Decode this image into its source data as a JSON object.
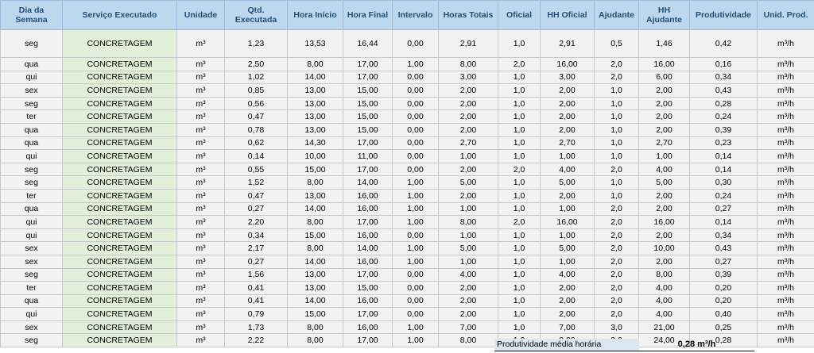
{
  "headers": [
    "Dia da Semana",
    "Serviço Executado",
    "Unidade",
    "Qtd. Executada",
    "Hora Início",
    "Hora Final",
    "Intervalo",
    "Horas Totais",
    "Oficial",
    "HH Oficial",
    "Ajudante",
    "HH Ajudante",
    "Produtividade",
    "Unid. Prod."
  ],
  "rows": [
    [
      "seg",
      "CONCRETAGEM",
      "m³",
      "1,23",
      "13,53",
      "16,44",
      "0,00",
      "2,91",
      "1,0",
      "2,91",
      "0,5",
      "1,46",
      "0,42",
      "m³/h"
    ],
    [
      "qua",
      "CONCRETAGEM",
      "m³",
      "2,50",
      "8,00",
      "17,00",
      "1,00",
      "8,00",
      "2,0",
      "16,00",
      "2,0",
      "16,00",
      "0,16",
      "m³/h"
    ],
    [
      "qui",
      "CONCRETAGEM",
      "m³",
      "1,02",
      "14,00",
      "17,00",
      "0,00",
      "3,00",
      "1,0",
      "3,00",
      "2,0",
      "6,00",
      "0,34",
      "m³/h"
    ],
    [
      "sex",
      "CONCRETAGEM",
      "m³",
      "0,85",
      "13,00",
      "15,00",
      "0,00",
      "2,00",
      "1,0",
      "2,00",
      "1,0",
      "2,00",
      "0,43",
      "m³/h"
    ],
    [
      "seg",
      "CONCRETAGEM",
      "m³",
      "0,56",
      "13,00",
      "15,00",
      "0,00",
      "2,00",
      "1,0",
      "2,00",
      "1,0",
      "2,00",
      "0,28",
      "m³/h"
    ],
    [
      "ter",
      "CONCRETAGEM",
      "m³",
      "0,47",
      "13,00",
      "15,00",
      "0,00",
      "2,00",
      "1,0",
      "2,00",
      "1,0",
      "2,00",
      "0,24",
      "m³/h"
    ],
    [
      "qua",
      "CONCRETAGEM",
      "m³",
      "0,78",
      "13,00",
      "15,00",
      "0,00",
      "2,00",
      "1,0",
      "2,00",
      "1,0",
      "2,00",
      "0,39",
      "m³/h"
    ],
    [
      "qua",
      "CONCRETAGEM",
      "m³",
      "0,62",
      "14,30",
      "17,00",
      "0,00",
      "2,70",
      "1,0",
      "2,70",
      "1,0",
      "2,70",
      "0,23",
      "m³/h"
    ],
    [
      "qui",
      "CONCRETAGEM",
      "m³",
      "0,14",
      "10,00",
      "11,00",
      "0,00",
      "1,00",
      "1,0",
      "1,00",
      "1,0",
      "1,00",
      "0,14",
      "m³/h"
    ],
    [
      "seg",
      "CONCRETAGEM",
      "m³",
      "0,55",
      "15,00",
      "17,00",
      "0,00",
      "2,00",
      "2,0",
      "4,00",
      "2,0",
      "4,00",
      "0,14",
      "m³/h"
    ],
    [
      "seg",
      "CONCRETAGEM",
      "m³",
      "1,52",
      "8,00",
      "14,00",
      "1,00",
      "5,00",
      "1,0",
      "5,00",
      "1,0",
      "5,00",
      "0,30",
      "m³/h"
    ],
    [
      "ter",
      "CONCRETAGEM",
      "m³",
      "0,47",
      "13,00",
      "16,00",
      "1,00",
      "2,00",
      "1,0",
      "2,00",
      "1,0",
      "2,00",
      "0,24",
      "m³/h"
    ],
    [
      "qua",
      "CONCRETAGEM",
      "m³",
      "0,27",
      "14,00",
      "16,00",
      "1,00",
      "1,00",
      "1,0",
      "1,00",
      "2,0",
      "2,00",
      "0,27",
      "m³/h"
    ],
    [
      "qui",
      "CONCRETAGEM",
      "m³",
      "2,20",
      "8,00",
      "17,00",
      "1,00",
      "8,00",
      "2,0",
      "16,00",
      "2,0",
      "16,00",
      "0,14",
      "m³/h"
    ],
    [
      "qui",
      "CONCRETAGEM",
      "m³",
      "0,34",
      "15,00",
      "16,00",
      "0,00",
      "1,00",
      "1,0",
      "1,00",
      "2,0",
      "2,00",
      "0,34",
      "m³/h"
    ],
    [
      "sex",
      "CONCRETAGEM",
      "m³",
      "2,17",
      "8,00",
      "14,00",
      "1,00",
      "5,00",
      "1,0",
      "5,00",
      "2,0",
      "10,00",
      "0,43",
      "m³/h"
    ],
    [
      "sex",
      "CONCRETAGEM",
      "m³",
      "0,27",
      "14,00",
      "16,00",
      "1,00",
      "1,00",
      "1,0",
      "1,00",
      "2,0",
      "2,00",
      "0,27",
      "m³/h"
    ],
    [
      "seg",
      "CONCRETAGEM",
      "m³",
      "1,56",
      "13,00",
      "17,00",
      "0,00",
      "4,00",
      "1,0",
      "4,00",
      "2,0",
      "8,00",
      "0,39",
      "m³/h"
    ],
    [
      "ter",
      "CONCRETAGEM",
      "m³",
      "0,41",
      "13,00",
      "15,00",
      "0,00",
      "2,00",
      "1,0",
      "2,00",
      "2,0",
      "4,00",
      "0,20",
      "m³/h"
    ],
    [
      "qua",
      "CONCRETAGEM",
      "m³",
      "0,41",
      "14,00",
      "16,00",
      "0,00",
      "2,00",
      "1,0",
      "2,00",
      "2,0",
      "4,00",
      "0,20",
      "m³/h"
    ],
    [
      "qui",
      "CONCRETAGEM",
      "m³",
      "0,79",
      "15,00",
      "17,00",
      "0,00",
      "2,00",
      "1,0",
      "2,00",
      "2,0",
      "4,00",
      "0,40",
      "m³/h"
    ],
    [
      "sex",
      "CONCRETAGEM",
      "m³",
      "1,73",
      "8,00",
      "16,00",
      "1,00",
      "7,00",
      "1,0",
      "7,00",
      "3,0",
      "21,00",
      "0,25",
      "m³/h"
    ],
    [
      "seg",
      "CONCRETAGEM",
      "m³",
      "2,22",
      "8,00",
      "17,00",
      "1,00",
      "8,00",
      "1,0",
      "8,00",
      "3,0",
      "24,00",
      "0,28",
      "m³/h"
    ]
  ],
  "summary": {
    "label": "Produtividade média horária",
    "value": "0,28 m³/h"
  },
  "colors": {
    "header_bg": "#bdd7ee",
    "header_text": "#1f4e79",
    "service_bg": "#e2efda",
    "cell_bg": "#f2f2f2",
    "summary_bg": "#dce6f1"
  }
}
